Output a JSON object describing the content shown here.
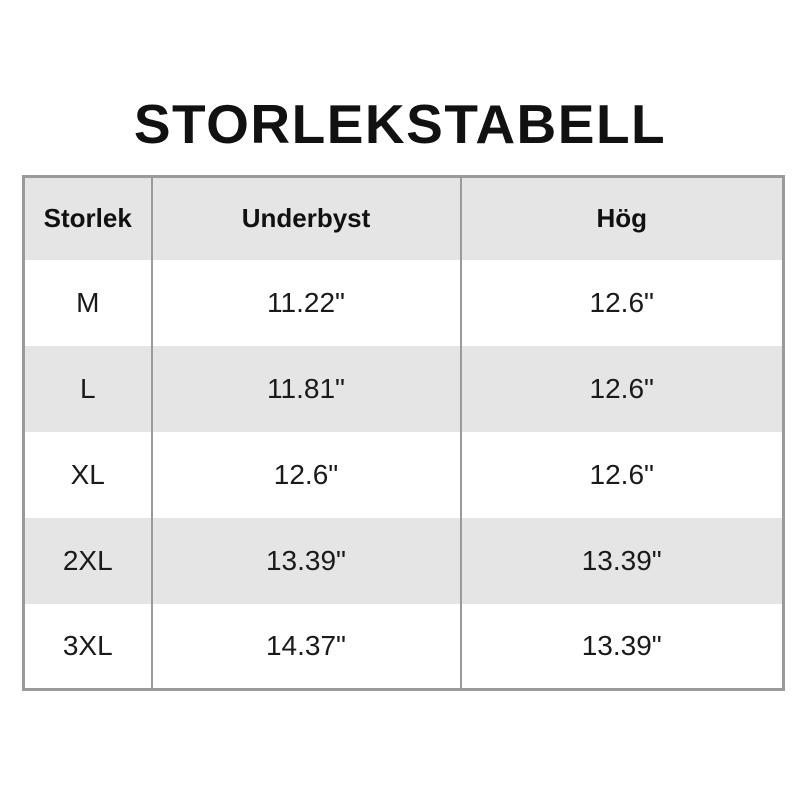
{
  "title": "STORLEKSTABELL",
  "colors": {
    "background": "#ffffff",
    "header_bg": "#e5e5e5",
    "stripe_bg": "#e5e5e5",
    "row_bg": "#ffffff",
    "border": "#9a9a9a",
    "text": "#1a1a1a",
    "title_text": "#111111"
  },
  "chart_data": {
    "type": "table",
    "title": "STORLEKSTABELL",
    "columns": [
      "Storlek",
      "Underbyst",
      "Hög"
    ],
    "rows": [
      [
        "M",
        "11.22\"",
        "12.6\""
      ],
      [
        "L",
        "11.81\"",
        "12.6\""
      ],
      [
        "XL",
        "12.6\"",
        "12.6\""
      ],
      [
        "2XL",
        "13.39\"",
        "13.39\""
      ],
      [
        "3XL",
        "14.37\"",
        "13.39\""
      ]
    ],
    "layout": {
      "header_striped": true,
      "zebra_rows": true,
      "inner_borders": "vertical-only"
    }
  }
}
